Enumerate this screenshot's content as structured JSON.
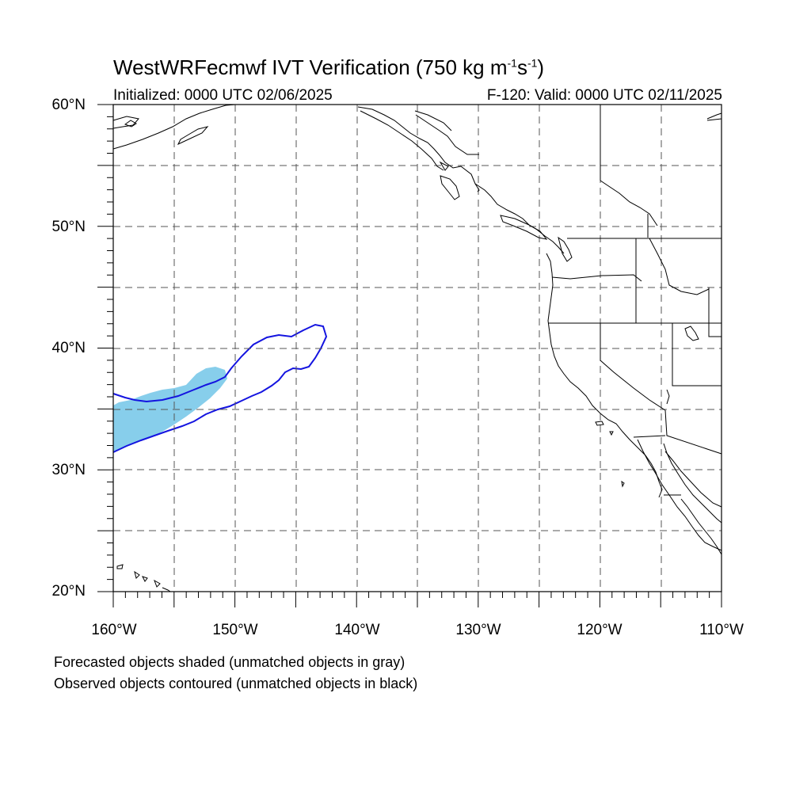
{
  "title": {
    "text": "WestWRFecmwf IVT Verification (750 kg m",
    "exp1": "-1",
    "mid": "s",
    "exp2": "-1",
    "end": ")"
  },
  "subtitle_left": "Initialized: 0000 UTC 02/06/2025",
  "subtitle_right": "F-120: Valid: 0000 UTC 02/11/2025",
  "axes": {
    "lat_labels": [
      "60°N",
      "50°N",
      "40°N",
      "30°N",
      "20°N"
    ],
    "lon_labels": [
      "160°W",
      "150°W",
      "140°W",
      "130°W",
      "120°W",
      "110°W"
    ],
    "lat_range": [
      20,
      60
    ],
    "lon_range": [
      -160,
      -110
    ]
  },
  "notes": [
    "Forecasted objects shaded (unmatched objects in gray)",
    "Observed objects contoured (unmatched objects in black)"
  ],
  "colors": {
    "forecast_fill": "#87ceeb",
    "observed_contour": "#1414e0",
    "grid": "#555555",
    "coastline": "#000000"
  }
}
